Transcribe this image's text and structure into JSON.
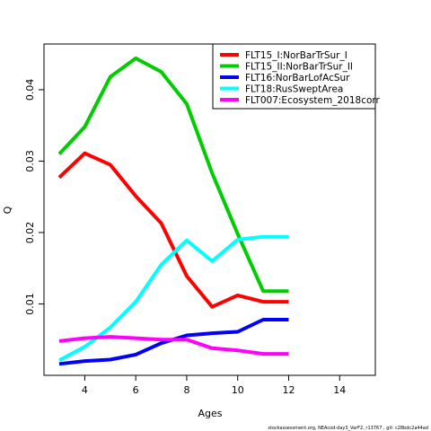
{
  "chart_data": {
    "type": "line",
    "xlabel": "Ages",
    "ylabel": "Q",
    "xlim": [
      2.4,
      15.4
    ],
    "ylim": [
      0.0,
      0.0464
    ],
    "xticks": [
      4,
      6,
      8,
      10,
      12,
      14
    ],
    "yticks": [
      0.01,
      0.02,
      0.03,
      0.04
    ],
    "legend_position": "top-right",
    "series": [
      {
        "name": "FLT15_I:NorBarTrSur_I",
        "color": "#ff0000",
        "x": [
          3,
          4,
          5,
          6,
          7,
          8,
          9,
          10,
          11,
          12
        ],
        "y": [
          0.0277,
          0.0311,
          0.0295,
          0.0251,
          0.0213,
          0.0139,
          0.0096,
          0.0112,
          0.0103,
          0.0103
        ]
      },
      {
        "name": "FLT15_II:NorBarTrSur_II",
        "color": "#00cd00",
        "x": [
          3,
          4,
          5,
          6,
          7,
          8,
          9,
          10,
          11,
          12
        ],
        "y": [
          0.031,
          0.0348,
          0.0418,
          0.0444,
          0.0425,
          0.038,
          0.0283,
          0.0198,
          0.0118,
          0.0118
        ]
      },
      {
        "name": "FLT16:NorBarLofAcSur",
        "color": "#0000ff",
        "x": [
          3,
          4,
          5,
          6,
          7,
          8,
          9,
          10,
          11,
          12
        ],
        "y": [
          0.0016,
          0.002,
          0.0022,
          0.0029,
          0.0045,
          0.0056,
          0.0059,
          0.0061,
          0.0078,
          0.0078
        ]
      },
      {
        "name": "FLT18:RusSweptArea",
        "color": "#00ffff",
        "x": [
          3,
          4,
          5,
          6,
          7,
          8,
          9,
          10,
          11,
          12
        ],
        "y": [
          0.0021,
          0.004,
          0.0067,
          0.0103,
          0.0155,
          0.0189,
          0.016,
          0.019,
          0.0194,
          0.0194
        ]
      },
      {
        "name": "FLT007:Ecosystem_2018corr",
        "color": "#ff00ff",
        "x": [
          3,
          4,
          5,
          6,
          7,
          8,
          9,
          10,
          11,
          12
        ],
        "y": [
          0.0048,
          0.0052,
          0.0054,
          0.0052,
          0.005,
          0.005,
          0.0038,
          0.0035,
          0.003,
          0.003
        ]
      }
    ]
  },
  "footer": "stockassessment.org, NEAcod-day3_VarF2, r13767 , git: c28bdc2a44ad"
}
